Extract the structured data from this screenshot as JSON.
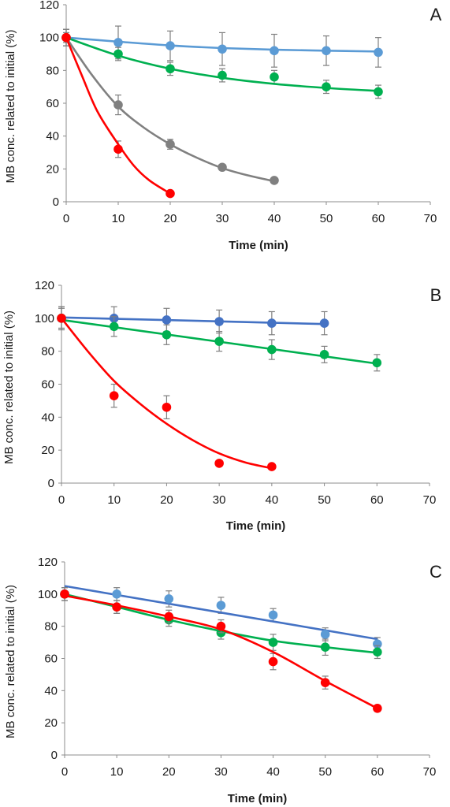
{
  "chart_data": [
    {
      "type": "scatter",
      "panel_label": "A",
      "xlabel": "Time (min)",
      "ylabel": "MB conc. related to initial (%)",
      "xlim": [
        0,
        70
      ],
      "ylim": [
        0,
        120
      ],
      "xticks": [
        "0",
        "10",
        "20",
        "30",
        "40",
        "50",
        "60",
        "70"
      ],
      "yticks": [
        "0",
        "20",
        "40",
        "60",
        "80",
        "100",
        "120"
      ],
      "grid": false,
      "series": [
        {
          "color": "#5b9bd5",
          "x": [
            0,
            10,
            20,
            30,
            40,
            50,
            60
          ],
          "y": [
            100,
            97,
            95,
            93,
            92,
            92,
            91
          ],
          "err": [
            5,
            10,
            9,
            10,
            10,
            9,
            9
          ],
          "fit": [
            [
              0,
              100
            ],
            [
              10,
              97.5
            ],
            [
              20,
              95.2
            ],
            [
              30,
              93.6
            ],
            [
              40,
              92.6
            ],
            [
              50,
              92
            ],
            [
              60,
              91.5
            ]
          ]
        },
        {
          "color": "#00b050",
          "x": [
            0,
            10,
            20,
            30,
            40,
            50,
            60
          ],
          "y": [
            100,
            90,
            81,
            77,
            76,
            70,
            67
          ],
          "err": [
            3,
            4,
            4,
            4,
            4,
            4,
            4
          ],
          "fit": [
            [
              0,
              100
            ],
            [
              10,
              89
            ],
            [
              20,
              81
            ],
            [
              30,
              75.5
            ],
            [
              40,
              71.8
            ],
            [
              50,
              69.3
            ],
            [
              60,
              67.5
            ]
          ]
        },
        {
          "color": "#808080",
          "x": [
            0,
            10,
            20,
            30,
            40
          ],
          "y": [
            100,
            59,
            35,
            21,
            13
          ],
          "err": [
            5,
            6,
            3,
            0,
            0
          ],
          "fit": [
            [
              0,
              100
            ],
            [
              5,
              77
            ],
            [
              10,
              58
            ],
            [
              15,
              45
            ],
            [
              20,
              35
            ],
            [
              25,
              27
            ],
            [
              30,
              20.5
            ],
            [
              35,
              16
            ],
            [
              40,
              12.5
            ]
          ]
        },
        {
          "color": "#ff0000",
          "x": [
            0,
            10,
            20
          ],
          "y": [
            100,
            32,
            5
          ],
          "err": [
            5,
            5,
            0
          ],
          "fit": [
            [
              0,
              100
            ],
            [
              3,
              77
            ],
            [
              6,
              55
            ],
            [
              10,
              35
            ],
            [
              13,
              22
            ],
            [
              16,
              13
            ],
            [
              20,
              5
            ]
          ]
        }
      ]
    },
    {
      "type": "scatter",
      "panel_label": "B",
      "xlabel": "Time (min)",
      "ylabel": "MB conc. related to initial (%)",
      "xlim": [
        0,
        70
      ],
      "ylim": [
        0,
        120
      ],
      "xticks": [
        "0",
        "10",
        "20",
        "30",
        "40",
        "50",
        "60",
        "70"
      ],
      "yticks": [
        "0",
        "20",
        "40",
        "60",
        "80",
        "100",
        "120"
      ],
      "grid": false,
      "series": [
        {
          "color": "#4472c4",
          "x": [
            0,
            10,
            20,
            30,
            40,
            50
          ],
          "y": [
            100,
            100,
            99,
            98,
            97,
            97
          ],
          "err": [
            7,
            7,
            7,
            7,
            7,
            7
          ],
          "fit": [
            [
              0,
              100.5
            ],
            [
              50,
              96.5
            ]
          ]
        },
        {
          "color": "#00b050",
          "x": [
            0,
            10,
            20,
            30,
            40,
            50,
            60
          ],
          "y": [
            100,
            95,
            90,
            86,
            81,
            78,
            73
          ],
          "err": [
            6,
            6,
            6,
            6,
            6,
            5,
            5
          ],
          "fit": [
            [
              0,
              99
            ],
            [
              60,
              72.5
            ]
          ]
        },
        {
          "color": "#ff0000",
          "x": [
            0,
            10,
            20,
            30,
            40
          ],
          "y": [
            100,
            53,
            46,
            12,
            10
          ],
          "err": [
            7,
            7,
            7,
            0,
            0
          ],
          "fit": [
            [
              0,
              100
            ],
            [
              5,
              80
            ],
            [
              10,
              62
            ],
            [
              15,
              48
            ],
            [
              20,
              36
            ],
            [
              25,
              26
            ],
            [
              30,
              18
            ],
            [
              35,
              12.5
            ],
            [
              40,
              9
            ]
          ]
        }
      ]
    },
    {
      "type": "scatter",
      "panel_label": "C",
      "xlabel": "Time (min)",
      "ylabel": "MB conc. related to initial (%)",
      "xlim": [
        0,
        70
      ],
      "ylim": [
        0,
        120
      ],
      "xticks": [
        "0",
        "10",
        "20",
        "30",
        "40",
        "50",
        "60",
        "70"
      ],
      "yticks": [
        "0",
        "20",
        "40",
        "60",
        "80",
        "100",
        "120"
      ],
      "grid": false,
      "series": [
        {
          "color": "#5b9bd5",
          "line_color": "#4472c4",
          "x": [
            0,
            10,
            20,
            30,
            40,
            50,
            60
          ],
          "y": [
            100,
            100,
            97,
            93,
            87,
            75,
            69
          ],
          "err": [
            4,
            4,
            5,
            5,
            4,
            4,
            4
          ],
          "fit": [
            [
              0,
              105
            ],
            [
              60,
              72
            ]
          ]
        },
        {
          "color": "#00b050",
          "x": [
            0,
            10,
            20,
            30,
            40,
            50,
            60
          ],
          "y": [
            100,
            92,
            84,
            76,
            70,
            67,
            64
          ],
          "err": [
            4,
            4,
            4,
            4,
            5,
            5,
            4
          ],
          "fit": [
            [
              0,
              100
            ],
            [
              10,
              92
            ],
            [
              20,
              84
            ],
            [
              30,
              77
            ],
            [
              40,
              71
            ],
            [
              50,
              67
            ],
            [
              60,
              63.5
            ]
          ]
        },
        {
          "color": "#ff0000",
          "x": [
            0,
            10,
            20,
            30,
            40,
            50,
            60
          ],
          "y": [
            100,
            92,
            86,
            80,
            58,
            45,
            29
          ],
          "err": [
            4,
            4,
            4,
            4,
            5,
            4,
            2
          ],
          "fit": [
            [
              0,
              99
            ],
            [
              10,
              93
            ],
            [
              20,
              86
            ],
            [
              30,
              78
            ],
            [
              40,
              64
            ],
            [
              50,
              46
            ],
            [
              60,
              29
            ]
          ]
        }
      ]
    }
  ]
}
